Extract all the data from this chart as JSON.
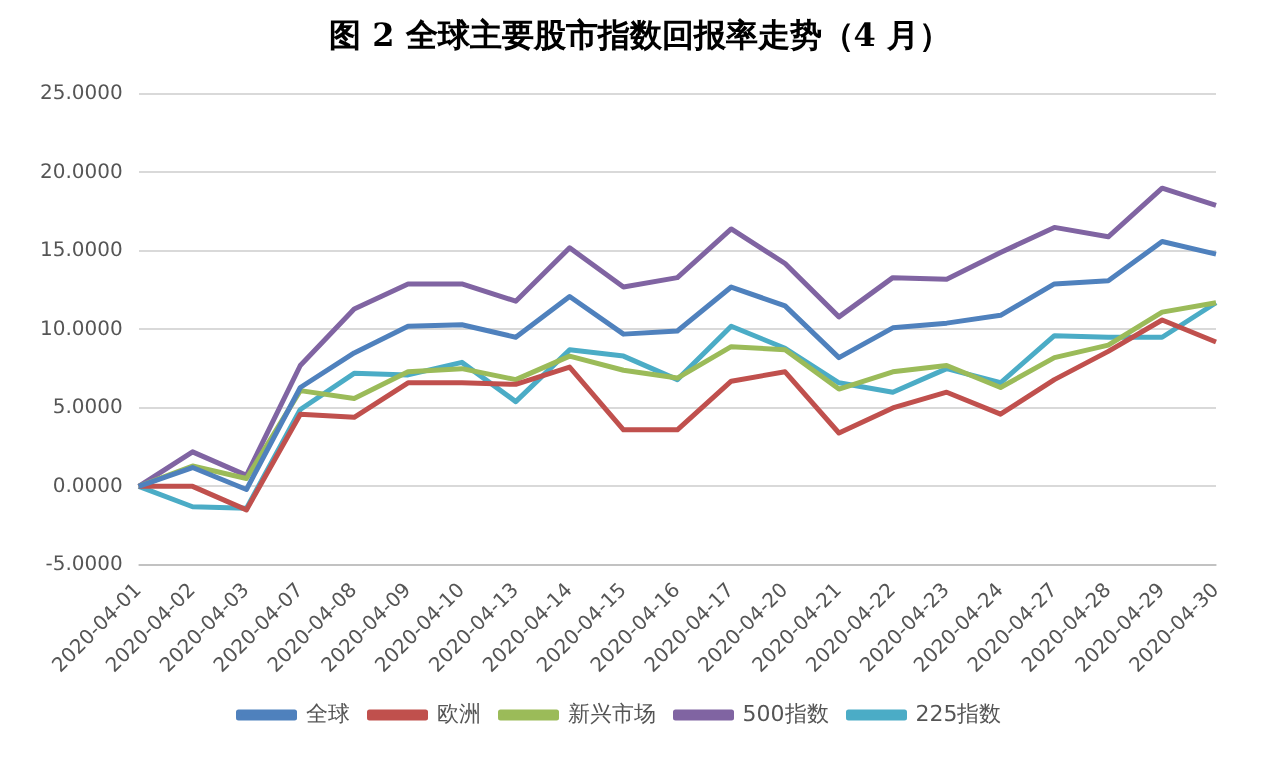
{
  "chart_data": {
    "type": "line",
    "title": "图 2  全球主要股市指数回报率走势（4 月）",
    "categories": [
      "2020-04-01",
      "2020-04-02",
      "2020-04-03",
      "2020-04-07",
      "2020-04-08",
      "2020-04-09",
      "2020-04-10",
      "2020-04-13",
      "2020-04-14",
      "2020-04-15",
      "2020-04-16",
      "2020-04-17",
      "2020-04-20",
      "2020-04-21",
      "2020-04-22",
      "2020-04-23",
      "2020-04-24",
      "2020-04-27",
      "2020-04-28",
      "2020-04-29",
      "2020-04-30"
    ],
    "series": [
      {
        "name": "全球",
        "color": "#4f81bd",
        "values": [
          0,
          1.2,
          -0.2,
          6.3,
          8.5,
          10.2,
          10.3,
          9.5,
          12.1,
          9.7,
          9.9,
          12.7,
          11.5,
          8.2,
          10.1,
          10.4,
          10.9,
          12.9,
          13.1,
          15.6,
          14.8
        ]
      },
      {
        "name": "欧洲",
        "color": "#c0504d",
        "values": [
          0,
          0,
          -1.5,
          4.6,
          4.4,
          6.6,
          6.6,
          6.5,
          7.6,
          3.6,
          3.6,
          6.7,
          7.3,
          3.4,
          5.0,
          6.0,
          4.6,
          6.8,
          8.6,
          10.6,
          9.2
        ]
      },
      {
        "name": "新兴市场",
        "color": "#9bbb59",
        "values": [
          0,
          1.3,
          0.5,
          6.1,
          5.6,
          7.3,
          7.5,
          6.8,
          8.3,
          7.4,
          6.9,
          8.9,
          8.7,
          6.2,
          7.3,
          7.7,
          6.3,
          8.2,
          9.0,
          11.1,
          11.7
        ]
      },
      {
        "name": "500指数",
        "color": "#8064a2",
        "values": [
          0,
          2.2,
          0.7,
          7.7,
          11.3,
          12.9,
          12.9,
          11.8,
          15.2,
          12.7,
          13.3,
          16.4,
          14.2,
          10.8,
          13.3,
          13.2,
          14.9,
          16.5,
          15.9,
          19.0,
          17.9
        ]
      },
      {
        "name": "225指数",
        "color": "#4bacc6",
        "values": [
          0,
          -1.3,
          -1.4,
          4.9,
          7.2,
          7.1,
          7.9,
          5.4,
          8.7,
          8.3,
          6.8,
          10.2,
          8.8,
          6.6,
          6.0,
          7.5,
          6.6,
          9.6,
          9.5,
          9.5,
          11.7
        ]
      }
    ],
    "ylim": [
      -5,
      25
    ],
    "yticks": [
      {
        "value": -5,
        "label": "-5.0000"
      },
      {
        "value": 0,
        "label": "0.0000"
      },
      {
        "value": 5,
        "label": "5.0000"
      },
      {
        "value": 10,
        "label": "10.0000"
      },
      {
        "value": 15,
        "label": "15.0000"
      },
      {
        "value": 20,
        "label": "20.0000"
      },
      {
        "value": 25,
        "label": "25.0000"
      }
    ],
    "grid": "y",
    "legend": "bottom",
    "marker": "none",
    "line_style": "solid"
  }
}
